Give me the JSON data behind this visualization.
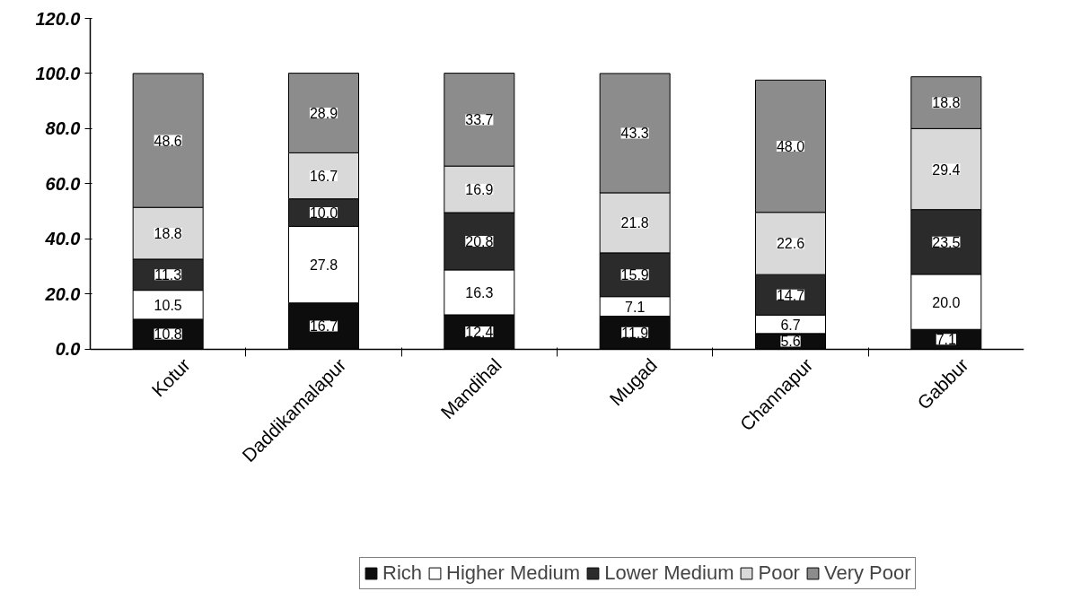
{
  "chart_data": {
    "type": "bar",
    "stacked": true,
    "categories": [
      "Kotur",
      "Daddikamalapur",
      "Mandihal",
      "Mugad",
      "Channapur",
      "Gabbur"
    ],
    "series": [
      {
        "name": "Rich",
        "color": "#0d0d0d",
        "values": [
          10.8,
          16.7,
          12.4,
          11.9,
          5.6,
          7.1
        ],
        "value_labels": [
          "10.8",
          "16.7",
          "12.4",
          "11.9",
          "5.6",
          "7.1"
        ]
      },
      {
        "name": "Higher Medium",
        "color": "#ffffff",
        "values": [
          10.5,
          27.8,
          16.3,
          7.1,
          6.7,
          20.0
        ],
        "value_labels": [
          "10.5",
          "27.8",
          "16.3",
          "7.1",
          "6.7",
          "20.0"
        ]
      },
      {
        "name": "Lower Medium",
        "color": "#2b2b2b",
        "values": [
          11.3,
          10.0,
          20.8,
          15.9,
          14.7,
          23.5
        ],
        "value_labels": [
          "11.3",
          "10.0",
          "20.8",
          "15.9",
          "14.7",
          "23.5"
        ]
      },
      {
        "name": "Poor",
        "color": "#d9d9d9",
        "values": [
          18.8,
          16.7,
          16.9,
          21.8,
          22.6,
          29.4
        ],
        "value_labels": [
          "18.8",
          "16.7",
          "16.9",
          "21.8",
          "22.6",
          "29.4"
        ]
      },
      {
        "name": "Very Poor",
        "color": "#8c8c8c",
        "values": [
          48.6,
          28.9,
          33.7,
          43.3,
          48.0,
          18.8
        ],
        "value_labels": [
          "48.6",
          "28.9",
          "33.7",
          "43.3",
          "48.0",
          "18.8"
        ]
      }
    ],
    "ylim": [
      0,
      120
    ],
    "yticks": [
      {
        "value": 0,
        "label": "0.0"
      },
      {
        "value": 20,
        "label": "20.0"
      },
      {
        "value": 40,
        "label": "40.0"
      },
      {
        "value": 60,
        "label": "60.0"
      },
      {
        "value": 80,
        "label": "80.0"
      },
      {
        "value": 100,
        "label": "100.0"
      },
      {
        "value": 120,
        "label": "120.0"
      }
    ],
    "legend": "bottom"
  }
}
